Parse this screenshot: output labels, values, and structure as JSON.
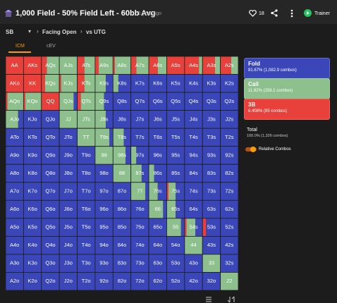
{
  "header": {
    "title": "1,000 Field - 50% Field Left - 60bb Avg",
    "time": "1 year ago",
    "likes": "18",
    "trainer": "Trainer"
  },
  "filters": [
    "SB",
    "Facing Open",
    "vs UTG"
  ],
  "tabs": [
    "ICM",
    "cEV"
  ],
  "legend": [
    {
      "name": "Fold",
      "detail": "81.67% (1,082.9 combos)",
      "color": "#3b47b8"
    },
    {
      "name": "Call",
      "detail": "11.92% (158.1 combos)",
      "color": "#8dc08c"
    },
    {
      "name": "3B",
      "detail": "6.408% (85 combos)",
      "color": "#e8413b"
    }
  ],
  "total": {
    "name": "Total",
    "detail": "100.0% (1,326 combos)"
  },
  "toggle": "Relative Combos",
  "grid": {
    "hands": [
      [
        "AA",
        "AKs",
        "AQs",
        "AJs",
        "ATs",
        "A9s",
        "A8s",
        "A7s",
        "A6s",
        "A5s",
        "A4s",
        "A3s",
        "A2s"
      ],
      [
        "AKo",
        "KK",
        "KQs",
        "KJs",
        "KTs",
        "K9s",
        "K8s",
        "K7s",
        "K6s",
        "K5s",
        "K4s",
        "K3s",
        "K2s"
      ],
      [
        "AQo",
        "KQo",
        "QQ",
        "QJs",
        "QTs",
        "Q9s",
        "Q8s",
        "Q7s",
        "Q6s",
        "Q5s",
        "Q4s",
        "Q3s",
        "Q2s"
      ],
      [
        "AJo",
        "KJo",
        "QJo",
        "JJ",
        "JTs",
        "J9s",
        "J8s",
        "J7s",
        "J6s",
        "J5s",
        "J4s",
        "J3s",
        "J2s"
      ],
      [
        "ATo",
        "KTo",
        "QTo",
        "JTo",
        "TT",
        "T9s",
        "T8s",
        "T7s",
        "T6s",
        "T5s",
        "T4s",
        "T3s",
        "T2s"
      ],
      [
        "A9o",
        "K9o",
        "Q9o",
        "J9o",
        "T9o",
        "99",
        "98s",
        "97s",
        "96s",
        "95s",
        "94s",
        "93s",
        "92s"
      ],
      [
        "A8o",
        "K8o",
        "Q8o",
        "J8o",
        "T8o",
        "98o",
        "88",
        "87s",
        "86s",
        "85s",
        "84s",
        "83s",
        "82s"
      ],
      [
        "A7o",
        "K7o",
        "Q7o",
        "J7o",
        "T7o",
        "97o",
        "87o",
        "77",
        "76s",
        "75s",
        "74s",
        "73s",
        "72s"
      ],
      [
        "A6o",
        "K6o",
        "Q6o",
        "J6o",
        "T6o",
        "96o",
        "86o",
        "76o",
        "66",
        "65s",
        "64s",
        "63s",
        "62s"
      ],
      [
        "A5o",
        "K5o",
        "Q5o",
        "J5o",
        "T5o",
        "95o",
        "85o",
        "75o",
        "65o",
        "55",
        "54s",
        "53s",
        "52s"
      ],
      [
        "A4o",
        "K4o",
        "Q4o",
        "J4o",
        "T4o",
        "94o",
        "84o",
        "74o",
        "64o",
        "54o",
        "44",
        "43s",
        "42s"
      ],
      [
        "A3o",
        "K3o",
        "Q3o",
        "J3o",
        "T3o",
        "93o",
        "83o",
        "73o",
        "63o",
        "53o",
        "43o",
        "33",
        "32s"
      ],
      [
        "A2o",
        "K2o",
        "Q2o",
        "J2o",
        "T2o",
        "92o",
        "82o",
        "72o",
        "62o",
        "52o",
        "42o",
        "32o",
        "22"
      ]
    ],
    "mix": [
      [
        [
          0,
          0,
          100
        ],
        [
          0,
          0,
          100
        ],
        [
          0,
          70,
          30
        ],
        [
          0,
          100,
          0
        ],
        [
          0,
          60,
          40
        ],
        [
          0,
          80,
          20
        ],
        [
          0,
          90,
          10
        ],
        [
          0,
          70,
          30
        ],
        [
          0,
          50,
          50
        ],
        [
          0,
          0,
          100
        ],
        [
          0,
          20,
          80
        ],
        [
          0,
          30,
          70
        ],
        [
          0,
          40,
          60
        ]
      ],
      [
        [
          0,
          0,
          100
        ],
        [
          0,
          0,
          100
        ],
        [
          0,
          80,
          20
        ],
        [
          0,
          90,
          10
        ],
        [
          0,
          60,
          40
        ],
        [
          40,
          60,
          0
        ],
        [
          70,
          30,
          0
        ],
        [
          100,
          0,
          0
        ],
        [
          100,
          0,
          0
        ],
        [
          100,
          0,
          0
        ],
        [
          100,
          0,
          0
        ],
        [
          100,
          0,
          0
        ],
        [
          100,
          0,
          0
        ]
      ],
      [
        [
          0,
          90,
          10
        ],
        [
          0,
          90,
          10
        ],
        [
          0,
          0,
          100
        ],
        [
          20,
          80,
          0
        ],
        [
          0,
          80,
          20
        ],
        [
          50,
          50,
          0
        ],
        [
          100,
          0,
          0
        ],
        [
          100,
          0,
          0
        ],
        [
          100,
          0,
          0
        ],
        [
          100,
          0,
          0
        ],
        [
          100,
          0,
          0
        ],
        [
          100,
          0,
          0
        ],
        [
          100,
          0,
          0
        ]
      ],
      [
        [
          30,
          70,
          0
        ],
        [
          100,
          0,
          0
        ],
        [
          100,
          0,
          0
        ],
        [
          0,
          100,
          0
        ],
        [
          0,
          100,
          0
        ],
        [
          40,
          60,
          0
        ],
        [
          100,
          0,
          0
        ],
        [
          100,
          0,
          0
        ],
        [
          100,
          0,
          0
        ],
        [
          100,
          0,
          0
        ],
        [
          100,
          0,
          0
        ],
        [
          100,
          0,
          0
        ],
        [
          100,
          0,
          0
        ]
      ],
      [
        [
          100,
          0,
          0
        ],
        [
          100,
          0,
          0
        ],
        [
          100,
          0,
          0
        ],
        [
          100,
          0,
          0
        ],
        [
          0,
          100,
          0
        ],
        [
          20,
          80,
          0
        ],
        [
          40,
          60,
          0
        ],
        [
          100,
          0,
          0
        ],
        [
          100,
          0,
          0
        ],
        [
          100,
          0,
          0
        ],
        [
          100,
          0,
          0
        ],
        [
          100,
          0,
          0
        ],
        [
          100,
          0,
          0
        ]
      ],
      [
        [
          100,
          0,
          0
        ],
        [
          100,
          0,
          0
        ],
        [
          100,
          0,
          0
        ],
        [
          100,
          0,
          0
        ],
        [
          100,
          0,
          0
        ],
        [
          0,
          100,
          0
        ],
        [
          30,
          70,
          0
        ],
        [
          70,
          30,
          0
        ],
        [
          100,
          0,
          0
        ],
        [
          100,
          0,
          0
        ],
        [
          100,
          0,
          0
        ],
        [
          100,
          0,
          0
        ],
        [
          100,
          0,
          0
        ]
      ],
      [
        [
          100,
          0,
          0
        ],
        [
          100,
          0,
          0
        ],
        [
          100,
          0,
          0
        ],
        [
          100,
          0,
          0
        ],
        [
          100,
          0,
          0
        ],
        [
          100,
          0,
          0
        ],
        [
          0,
          100,
          0
        ],
        [
          40,
          60,
          0
        ],
        [
          70,
          30,
          0
        ],
        [
          100,
          0,
          0
        ],
        [
          100,
          0,
          0
        ],
        [
          100,
          0,
          0
        ],
        [
          100,
          0,
          0
        ]
      ],
      [
        [
          100,
          0,
          0
        ],
        [
          100,
          0,
          0
        ],
        [
          100,
          0,
          0
        ],
        [
          100,
          0,
          0
        ],
        [
          100,
          0,
          0
        ],
        [
          100,
          0,
          0
        ],
        [
          100,
          0,
          0
        ],
        [
          20,
          80,
          0
        ],
        [
          50,
          50,
          0
        ],
        [
          50,
          40,
          10
        ],
        [
          100,
          0,
          0
        ],
        [
          100,
          0,
          0
        ],
        [
          100,
          0,
          0
        ]
      ],
      [
        [
          100,
          0,
          0
        ],
        [
          100,
          0,
          0
        ],
        [
          100,
          0,
          0
        ],
        [
          100,
          0,
          0
        ],
        [
          100,
          0,
          0
        ],
        [
          100,
          0,
          0
        ],
        [
          100,
          0,
          0
        ],
        [
          100,
          0,
          0
        ],
        [
          20,
          80,
          0
        ],
        [
          50,
          50,
          0
        ],
        [
          100,
          0,
          0
        ],
        [
          100,
          0,
          0
        ],
        [
          100,
          0,
          0
        ]
      ],
      [
        [
          100,
          0,
          0
        ],
        [
          100,
          0,
          0
        ],
        [
          100,
          0,
          0
        ],
        [
          100,
          0,
          0
        ],
        [
          100,
          0,
          0
        ],
        [
          100,
          0,
          0
        ],
        [
          100,
          0,
          0
        ],
        [
          100,
          0,
          0
        ],
        [
          100,
          0,
          0
        ],
        [
          20,
          80,
          0
        ],
        [
          40,
          50,
          10
        ],
        [
          80,
          0,
          20
        ],
        [
          100,
          0,
          0
        ]
      ],
      [
        [
          100,
          0,
          0
        ],
        [
          100,
          0,
          0
        ],
        [
          100,
          0,
          0
        ],
        [
          100,
          0,
          0
        ],
        [
          100,
          0,
          0
        ],
        [
          100,
          0,
          0
        ],
        [
          100,
          0,
          0
        ],
        [
          100,
          0,
          0
        ],
        [
          100,
          0,
          0
        ],
        [
          100,
          0,
          0
        ],
        [
          0,
          100,
          0
        ],
        [
          100,
          0,
          0
        ],
        [
          100,
          0,
          0
        ]
      ],
      [
        [
          100,
          0,
          0
        ],
        [
          100,
          0,
          0
        ],
        [
          100,
          0,
          0
        ],
        [
          100,
          0,
          0
        ],
        [
          100,
          0,
          0
        ],
        [
          100,
          0,
          0
        ],
        [
          100,
          0,
          0
        ],
        [
          100,
          0,
          0
        ],
        [
          100,
          0,
          0
        ],
        [
          100,
          0,
          0
        ],
        [
          100,
          0,
          0
        ],
        [
          0,
          100,
          0
        ],
        [
          100,
          0,
          0
        ]
      ],
      [
        [
          100,
          0,
          0
        ],
        [
          100,
          0,
          0
        ],
        [
          100,
          0,
          0
        ],
        [
          100,
          0,
          0
        ],
        [
          100,
          0,
          0
        ],
        [
          100,
          0,
          0
        ],
        [
          100,
          0,
          0
        ],
        [
          100,
          0,
          0
        ],
        [
          100,
          0,
          0
        ],
        [
          100,
          0,
          0
        ],
        [
          100,
          0,
          0
        ],
        [
          100,
          0,
          0
        ],
        [
          0,
          100,
          0
        ]
      ]
    ]
  }
}
